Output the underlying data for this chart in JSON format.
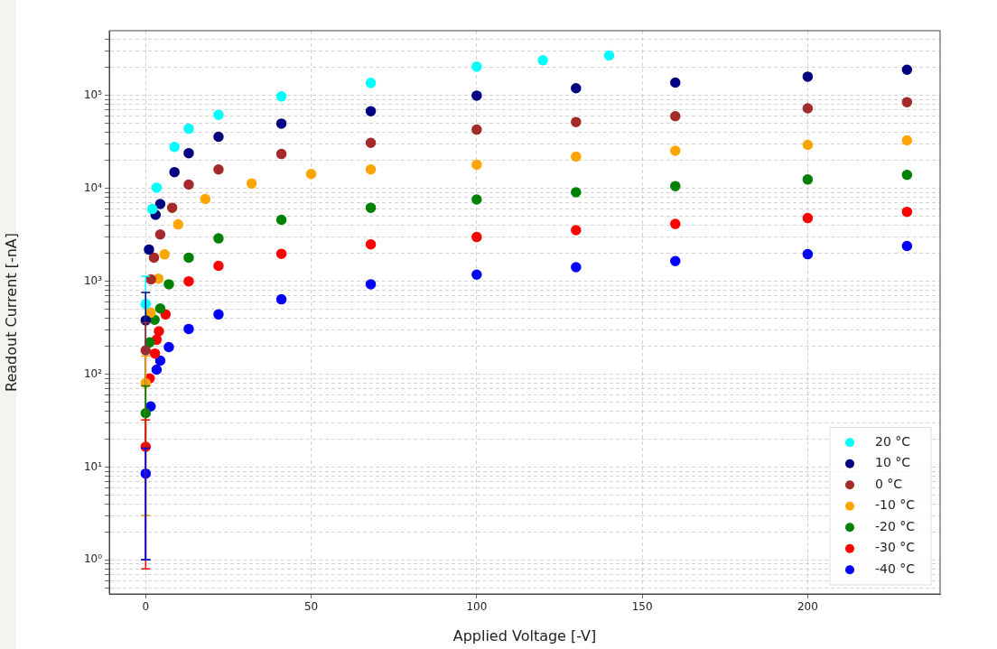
{
  "chart_data": {
    "type": "scatter",
    "xlabel": "Applied Voltage [-V]",
    "ylabel": "Readout Current [-nA]",
    "xlim": [
      -11,
      240
    ],
    "xticks": [
      0,
      50,
      100,
      150,
      200
    ],
    "ylim": [
      0.43,
      500000
    ],
    "yticks": [
      {
        "value": 0.5,
        "label": null
      },
      {
        "value": 0.6,
        "label": null
      },
      {
        "value": 0.7,
        "label": null
      },
      {
        "value": 0.8,
        "label": null
      },
      {
        "value": 0.9,
        "label": null
      },
      {
        "value": 1,
        "label": "10⁰"
      },
      {
        "value": 2,
        "label": null
      },
      {
        "value": 3,
        "label": null
      },
      {
        "value": 4,
        "label": null
      },
      {
        "value": 5,
        "label": null
      },
      {
        "value": 6,
        "label": null
      },
      {
        "value": 7,
        "label": null
      },
      {
        "value": 8,
        "label": null
      },
      {
        "value": 9,
        "label": null
      },
      {
        "value": 10,
        "label": "10¹"
      },
      {
        "value": 20,
        "label": null
      },
      {
        "value": 30,
        "label": null
      },
      {
        "value": 40,
        "label": null
      },
      {
        "value": 50,
        "label": null
      },
      {
        "value": 60,
        "label": null
      },
      {
        "value": 70,
        "label": null
      },
      {
        "value": 80,
        "label": null
      },
      {
        "value": 90,
        "label": null
      },
      {
        "value": 100,
        "label": "10²"
      },
      {
        "value": 200,
        "label": null
      },
      {
        "value": 300,
        "label": null
      },
      {
        "value": 400,
        "label": null
      },
      {
        "value": 500,
        "label": null
      },
      {
        "value": 600,
        "label": null
      },
      {
        "value": 700,
        "label": null
      },
      {
        "value": 800,
        "label": null
      },
      {
        "value": 900,
        "label": null
      },
      {
        "value": 1000,
        "label": "10³"
      },
      {
        "value": 2000,
        "label": null
      },
      {
        "value": 3000,
        "label": null
      },
      {
        "value": 4000,
        "label": null
      },
      {
        "value": 5000,
        "label": null
      },
      {
        "value": 6000,
        "label": null
      },
      {
        "value": 7000,
        "label": null
      },
      {
        "value": 8000,
        "label": null
      },
      {
        "value": 9000,
        "label": null
      },
      {
        "value": 10000,
        "label": "10⁴"
      },
      {
        "value": 20000,
        "label": null
      },
      {
        "value": 30000,
        "label": null
      },
      {
        "value": 40000,
        "label": null
      },
      {
        "value": 50000,
        "label": null
      },
      {
        "value": 60000,
        "label": null
      },
      {
        "value": 70000,
        "label": null
      },
      {
        "value": 80000,
        "label": null
      },
      {
        "value": 90000,
        "label": null
      },
      {
        "value": 100000,
        "label": "10⁵"
      },
      {
        "value": 200000,
        "label": null
      },
      {
        "value": 300000,
        "label": null
      },
      {
        "value": 400000,
        "label": null
      }
    ],
    "log": "y",
    "grid": true,
    "legend": "bottom right",
    "marker": "circle",
    "series": [
      {
        "name": "20 °C",
        "color": "#00ffff",
        "x": [
          0,
          2,
          3.3,
          8.7,
          13,
          22,
          41,
          68,
          100,
          120,
          140
        ],
        "values": [
          570,
          6000,
          10200,
          28000,
          44000,
          62000,
          98000,
          137000,
          205000,
          240000,
          270000
        ],
        "errors": [
          567,
          null,
          null,
          null,
          null,
          null,
          null,
          null,
          null,
          null,
          null
        ]
      },
      {
        "name": "10 °C",
        "color": "#000080",
        "x": [
          0,
          1,
          3,
          4.4,
          8.7,
          13,
          22,
          41,
          68,
          100,
          130,
          160,
          200,
          230
        ],
        "values": [
          380,
          2200,
          5200,
          6800,
          15000,
          24000,
          36000,
          50000,
          68000,
          100000,
          120000,
          138000,
          160000,
          190000
        ],
        "errors": [
          379,
          null,
          null,
          null,
          null,
          null,
          null,
          null,
          null,
          null,
          null,
          null,
          null,
          null
        ]
      },
      {
        "name": "0 °C",
        "color": "#a52a2a",
        "x": [
          0,
          1.6,
          2.5,
          4.4,
          8,
          13,
          22,
          41,
          68,
          100,
          130,
          160,
          200,
          230
        ],
        "values": [
          180,
          1050,
          1800,
          3200,
          6200,
          11000,
          16000,
          23500,
          31000,
          43000,
          52000,
          60000,
          73000,
          85000
        ],
        "errors": [
          179,
          null,
          null,
          null,
          null,
          null,
          null,
          null,
          null,
          null,
          null,
          null,
          null,
          null
        ]
      },
      {
        "name": "-10 °C",
        "color": "#ffa500",
        "x": [
          0,
          1.5,
          3.8,
          5.7,
          9.8,
          18,
          32,
          50,
          68,
          100,
          130,
          160,
          200,
          230
        ],
        "values": [
          80,
          460,
          1070,
          1950,
          4100,
          7700,
          11300,
          14300,
          16000,
          18000,
          22000,
          25500,
          29500,
          33000
        ],
        "errors": [
          77,
          null,
          null,
          null,
          null,
          null,
          null,
          null,
          null,
          null,
          null,
          null,
          null,
          null
        ]
      },
      {
        "name": "-20 °C",
        "color": "#008000",
        "x": [
          0,
          1.2,
          2.7,
          4.4,
          7,
          13,
          22,
          41,
          68,
          100,
          130,
          160,
          200,
          230
        ],
        "values": [
          38,
          220,
          385,
          510,
          930,
          1800,
          2900,
          4600,
          6200,
          7600,
          9100,
          10600,
          12500,
          14000
        ],
        "errors": [
          37,
          null,
          null,
          null,
          null,
          null,
          null,
          null,
          null,
          null,
          null,
          null,
          null,
          null
        ]
      },
      {
        "name": "-30 °C",
        "color": "#ff0000",
        "x": [
          0,
          1.2,
          2.8,
          3.3,
          4,
          6,
          13,
          22,
          41,
          68,
          100,
          130,
          160,
          200,
          230
        ],
        "values": [
          16.5,
          90,
          167,
          235,
          290,
          440,
          1000,
          1470,
          1980,
          2500,
          3000,
          3550,
          4150,
          4800,
          5600
        ],
        "errors": [
          15.7,
          null,
          null,
          null,
          null,
          null,
          null,
          null,
          null,
          null,
          null,
          null,
          null,
          null,
          null
        ]
      },
      {
        "name": "-40 °C",
        "color": "#0000ff",
        "x": [
          0,
          1.5,
          3.3,
          4.4,
          7,
          13,
          22,
          41,
          68,
          100,
          130,
          160,
          200,
          230
        ],
        "values": [
          8.5,
          45,
          112,
          140,
          196,
          307,
          440,
          640,
          930,
          1180,
          1420,
          1650,
          1960,
          2400
        ],
        "errors": [
          7.5,
          null,
          null,
          null,
          null,
          null,
          null,
          null,
          null,
          null,
          null,
          null,
          null,
          null
        ]
      }
    ]
  }
}
